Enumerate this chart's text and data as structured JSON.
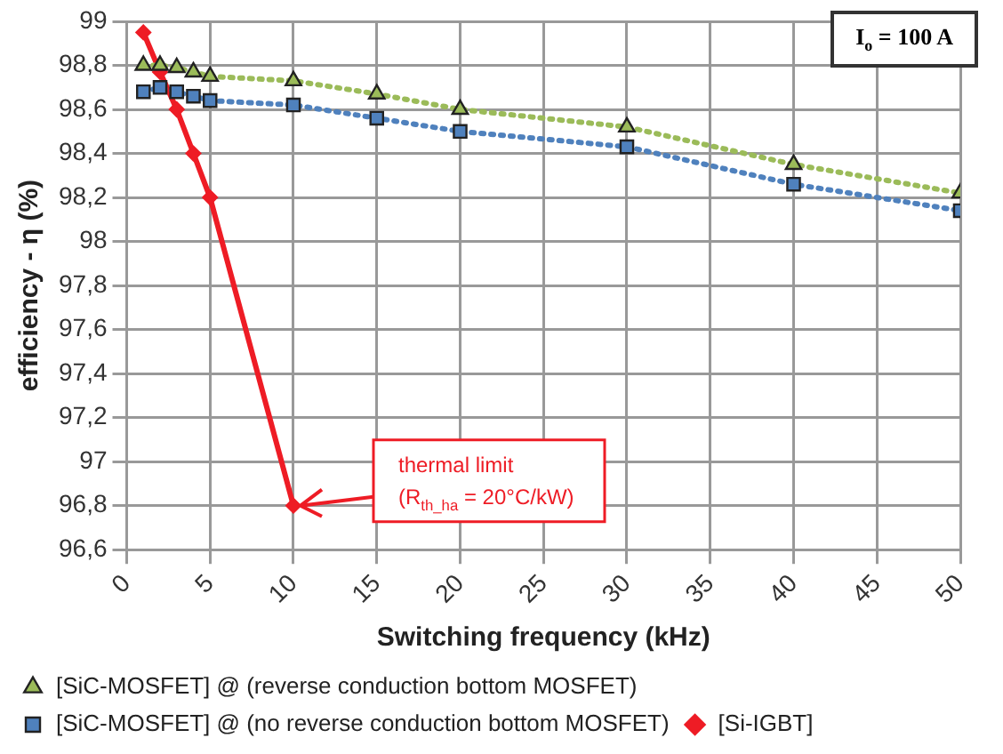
{
  "chart_data": {
    "type": "line",
    "xlabel": "Switching frequency (kHz)",
    "ylabel": "efficiency - η (%)",
    "annotations": [
      "I$_{o}$ = 100 A",
      {
        "text": "thermal limit\n(R$_{th_ha}$ = 20°C/kW)",
        "x": 10,
        "y": 96.8
      }
    ],
    "series": [
      {
        "name": "[SiC-MOSFET] @ (reverse conduction bottom MOSFET)",
        "color": "#9bbb59",
        "marker": "triangle",
        "line_style": "dotted",
        "x": [
          1,
          2,
          3,
          4,
          5,
          10,
          15,
          20,
          30,
          40,
          50
        ],
        "values": [
          98.8,
          98.8,
          98.79,
          98.77,
          98.75,
          98.73,
          98.67,
          98.6,
          98.52,
          98.35,
          98.22
        ]
      },
      {
        "name": "[SiC-MOSFET] @ (no reverse conduction bottom MOSFET)",
        "color": "#4f81bd",
        "marker": "square",
        "line_style": "dotted",
        "x": [
          1,
          2,
          3,
          4,
          5,
          10,
          15,
          20,
          30,
          40,
          50
        ],
        "values": [
          98.68,
          98.7,
          98.68,
          98.66,
          98.64,
          98.62,
          98.56,
          98.5,
          98.43,
          98.26,
          98.14
        ]
      },
      {
        "name": "[Si-IGBT]",
        "color": "#ee1c25",
        "marker": "diamond",
        "line_style": "solid",
        "x": [
          1,
          2,
          3,
          4,
          5,
          10
        ],
        "values": [
          98.95,
          98.77,
          98.6,
          98.4,
          98.2,
          96.8
        ]
      }
    ],
    "xlim": [
      0,
      50
    ],
    "xticks": [
      0,
      5,
      10,
      15,
      20,
      25,
      30,
      35,
      40,
      45,
      50
    ],
    "ylim": [
      96.6,
      99
    ],
    "yticks": [
      {
        "value": 96.6,
        "label": "96,6"
      },
      {
        "value": 96.8,
        "label": "96,8"
      },
      97,
      {
        "value": 97.2,
        "label": "97,2"
      },
      {
        "value": 97.4,
        "label": "97,4"
      },
      {
        "value": 97.6,
        "label": "97,6"
      },
      {
        "value": 97.8,
        "label": "97,8"
      },
      98,
      {
        "value": 98.2,
        "label": "98,2"
      },
      {
        "value": 98.4,
        "label": "98,4"
      },
      {
        "value": 98.6,
        "label": "98,6"
      },
      {
        "value": 98.8,
        "label": "98,8"
      },
      99
    ],
    "grid": true,
    "legend": "bottom"
  }
}
